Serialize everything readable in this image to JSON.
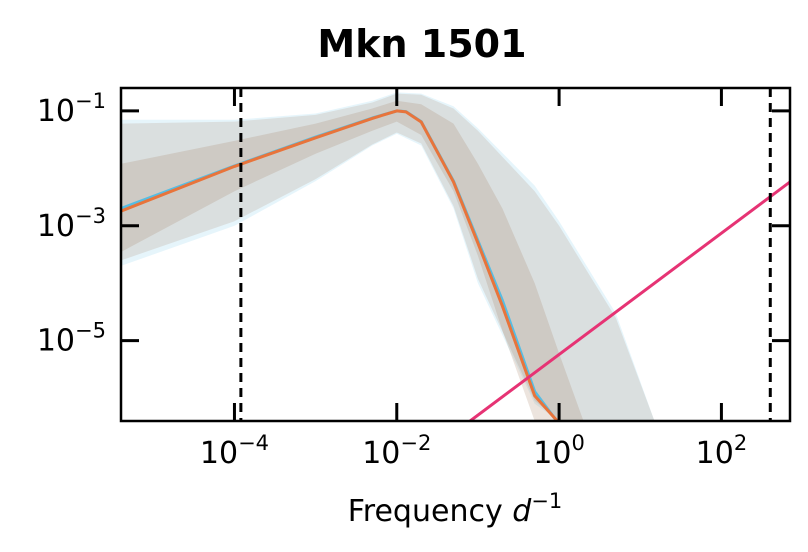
{
  "chart_data": {
    "type": "line",
    "title": "Mkn 1501",
    "xlabel": "Frequency",
    "xlabel_unit_base": "d",
    "xlabel_unit_exp": "−1",
    "xscale": "log",
    "yscale": "log",
    "xlim": [
      4e-06,
      700
    ],
    "ylim": [
      4e-07,
      0.25
    ],
    "grid": false,
    "x_ticks": [
      {
        "value": 0.0001,
        "base": "10",
        "exp": "−4"
      },
      {
        "value": 0.01,
        "base": "10",
        "exp": "−2"
      },
      {
        "value": 1,
        "base": "10",
        "exp": "0"
      },
      {
        "value": 100,
        "base": "10",
        "exp": "2"
      }
    ],
    "y_ticks": [
      {
        "value": 0.1,
        "base": "10",
        "exp": "−1"
      },
      {
        "value": 0.001,
        "base": "10",
        "exp": "−3"
      },
      {
        "value": 1e-05,
        "base": "10",
        "exp": "−5"
      }
    ],
    "vertical_lines": [
      0.00012,
      400
    ],
    "series": [
      {
        "color": "#56bde3",
        "x": [
          4e-06,
          0.0001,
          0.001,
          0.005,
          0.01,
          0.013,
          0.02,
          0.05,
          0.1,
          0.2,
          0.5,
          1
        ],
        "y": [
          0.002,
          0.011,
          0.035,
          0.075,
          0.1,
          0.097,
          0.065,
          0.006,
          0.00055,
          5e-05,
          1.3e-06,
          3.5e-07
        ]
      },
      {
        "color": "#e8743b",
        "x": [
          4e-06,
          0.0001,
          0.001,
          0.005,
          0.01,
          0.013,
          0.02,
          0.05,
          0.1,
          0.2,
          0.5,
          0.95
        ],
        "y": [
          0.0018,
          0.0108,
          0.034,
          0.074,
          0.1,
          0.096,
          0.064,
          0.0058,
          0.0005,
          4e-05,
          1.1e-06,
          4e-07
        ]
      },
      {
        "color": "#e63374",
        "x": [
          0.08,
          700
        ],
        "y": [
          4e-07,
          0.0058
        ]
      }
    ],
    "bands": [
      {
        "color": "#56bde3",
        "opacity": 0.15,
        "x": [
          4e-06,
          0.0001,
          0.001,
          0.005,
          0.01,
          0.02,
          0.05,
          0.1,
          0.5,
          1,
          5,
          15
        ],
        "upper": [
          0.07,
          0.07,
          0.09,
          0.15,
          0.21,
          0.2,
          0.12,
          0.05,
          0.005,
          0.0012,
          3e-05,
          4e-07
        ],
        "lower": [
          0.0002,
          0.001,
          0.006,
          0.025,
          0.04,
          0.025,
          0.002,
          0.0001,
          8e-07,
          4e-07,
          4e-07,
          4e-07
        ]
      },
      {
        "color": "#a07858",
        "opacity": 0.17,
        "x": [
          4e-06,
          0.0001,
          0.001,
          0.005,
          0.01,
          0.02,
          0.05,
          0.1,
          0.5,
          1,
          5,
          15
        ],
        "upper": [
          0.06,
          0.065,
          0.085,
          0.14,
          0.2,
          0.19,
          0.11,
          0.045,
          0.004,
          0.001,
          2.5e-05,
          4e-07
        ],
        "lower": [
          0.00025,
          0.0012,
          0.0065,
          0.026,
          0.042,
          0.027,
          0.0022,
          0.00012,
          9e-07,
          4e-07,
          4e-07,
          4e-07
        ]
      },
      {
        "color": "#a07858",
        "opacity": 0.2,
        "x": [
          4e-06,
          0.0001,
          0.001,
          0.005,
          0.01,
          0.02,
          0.05,
          0.1,
          0.2,
          0.5,
          1,
          2
        ],
        "upper": [
          0.012,
          0.03,
          0.06,
          0.11,
          0.15,
          0.13,
          0.06,
          0.012,
          0.002,
          0.0001,
          6e-06,
          4e-07
        ],
        "lower": [
          0.00035,
          0.004,
          0.018,
          0.045,
          0.065,
          0.038,
          0.004,
          0.0003,
          1.5e-05,
          4e-07,
          4e-07,
          4e-07
        ]
      }
    ]
  }
}
